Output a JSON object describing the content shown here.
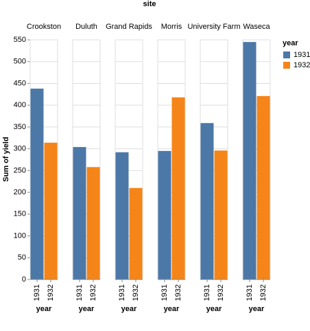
{
  "chart_data": {
    "type": "bar",
    "title": "site",
    "categories": [
      "Crookston",
      "Duluth",
      "Grand Rapids",
      "Morris",
      "University Farm",
      "Waseca"
    ],
    "series": [
      {
        "name": "1931",
        "color": "#4c78a8",
        "values": [
          438,
          304,
          292,
          295,
          359,
          545
        ]
      },
      {
        "name": "1932",
        "color": "#f58518",
        "values": [
          314,
          258,
          210,
          418,
          296,
          421
        ]
      }
    ],
    "x_label": "year",
    "y_label": "Sum of yield",
    "legend_title": "year",
    "ylim": [
      0,
      550
    ],
    "yticks": [
      0,
      50,
      100,
      150,
      200,
      250,
      300,
      350,
      400,
      450,
      500,
      550
    ],
    "grid": true,
    "legend_position": "right"
  }
}
